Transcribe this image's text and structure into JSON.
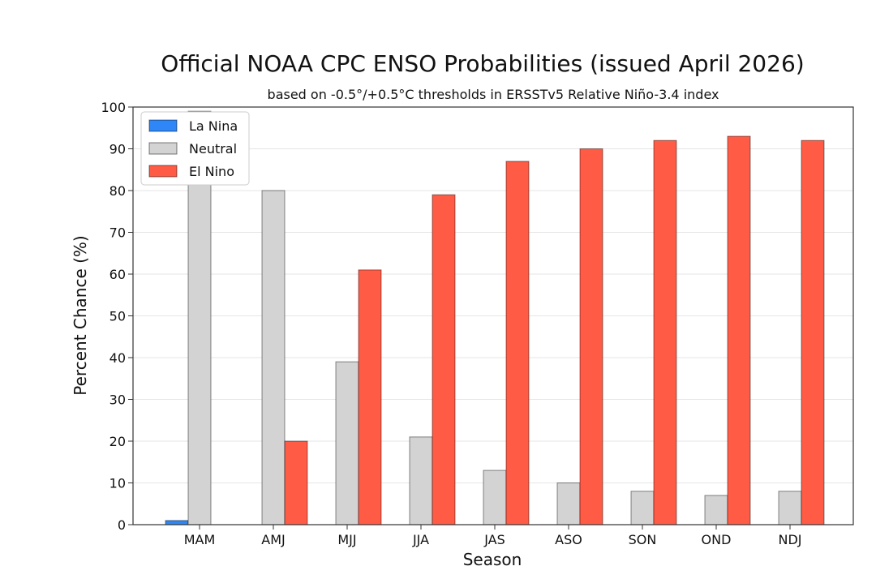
{
  "chart_data": {
    "type": "bar",
    "title": "Official NOAA CPC ENSO Probabilities (issued April 2026)",
    "subtitle": "based on -0.5°/+0.5°C thresholds in ERSSTv5 Relative Niño-3.4 index",
    "xlabel": "Season",
    "ylabel": "Percent Chance (%)",
    "ylim": [
      0,
      100
    ],
    "yticks": [
      0,
      10,
      20,
      30,
      40,
      50,
      60,
      70,
      80,
      90,
      100
    ],
    "grid": "horizontal",
    "legend_position": "top-left",
    "categories": [
      "MAM",
      "AMJ",
      "MJJ",
      "JJA",
      "JAS",
      "ASO",
      "SON",
      "OND",
      "NDJ"
    ],
    "series": [
      {
        "name": "La Nina",
        "color": "#2f86f6",
        "values": [
          1,
          0,
          0,
          0,
          0,
          0,
          0,
          0,
          0
        ]
      },
      {
        "name": "Neutral",
        "color": "#d3d3d3",
        "values": [
          99,
          80,
          39,
          21,
          13,
          10,
          8,
          7,
          8
        ]
      },
      {
        "name": "El Nino",
        "color": "#ff5b45",
        "values": [
          0,
          20,
          61,
          79,
          87,
          90,
          92,
          93,
          92
        ]
      }
    ]
  }
}
